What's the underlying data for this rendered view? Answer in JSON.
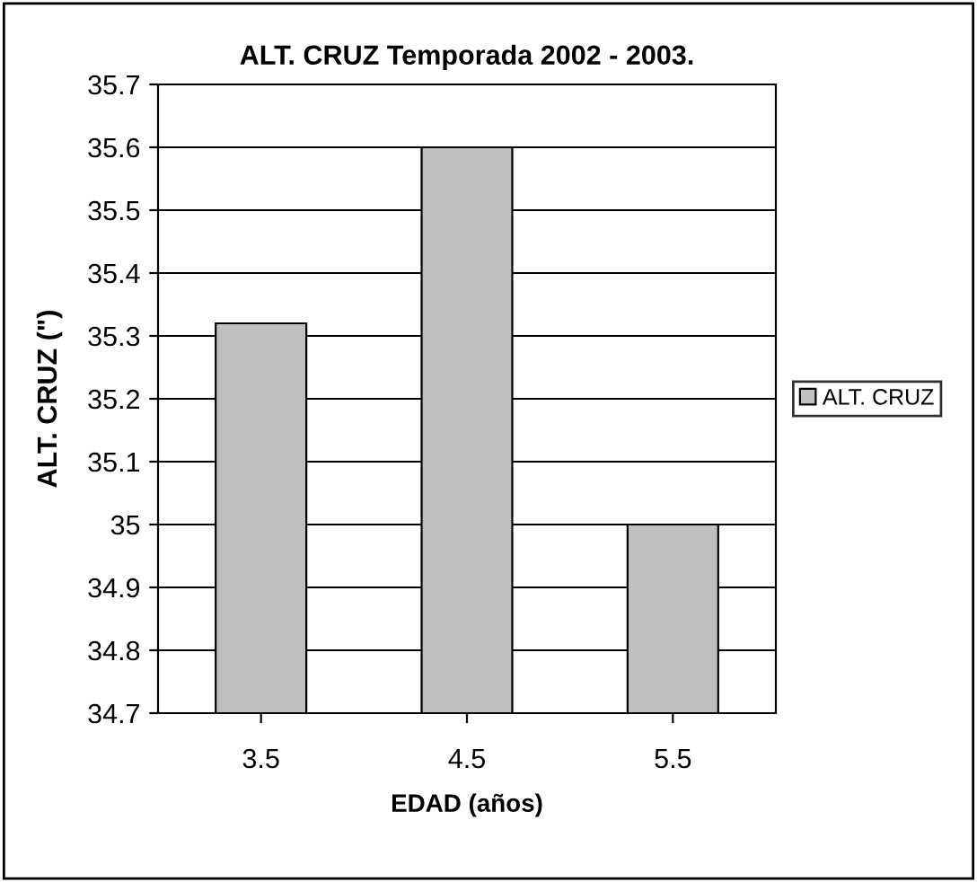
{
  "chart_data": {
    "type": "bar",
    "title": "ALT. CRUZ Temporada 2002 - 2003.",
    "xlabel": "EDAD (años)",
    "ylabel": "ALT. CRUZ (\")",
    "categories": [
      "3.5",
      "4.5",
      "5.5"
    ],
    "series": [
      {
        "name": "ALT. CRUZ",
        "color": "#c0c0c0",
        "values": [
          35.32,
          35.6,
          35.0
        ]
      }
    ],
    "ylim": [
      34.7,
      35.7
    ],
    "yticks": [
      34.7,
      34.8,
      34.9,
      35,
      35.1,
      35.2,
      35.3,
      35.4,
      35.5,
      35.6,
      35.7
    ],
    "grid": "y",
    "legend": "right"
  }
}
